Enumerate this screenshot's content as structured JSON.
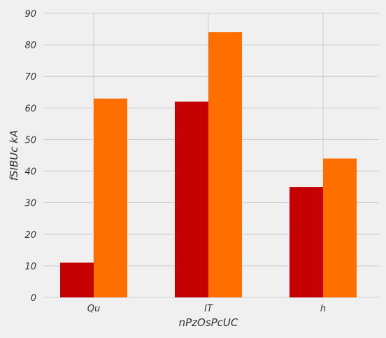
{
  "chart_data": {
    "type": "bar",
    "categories": [
      "Qu",
      "IT",
      "h"
    ],
    "series": [
      {
        "values": [
          11,
          62,
          35
        ],
        "color": "#c40000"
      },
      {
        "values": [
          63,
          84,
          44
        ],
        "color": "#ff6f00"
      }
    ],
    "title": "",
    "xlabel": "nPzOsPcUC",
    "ylabel": "fSIBUc kA",
    "ylim": [
      0,
      90
    ],
    "yticks": [
      0,
      10,
      20,
      30,
      40,
      50,
      60,
      70,
      80,
      90
    ],
    "grid": true,
    "background": "#f0f0f0",
    "grid_color": "#cbcbcb"
  }
}
